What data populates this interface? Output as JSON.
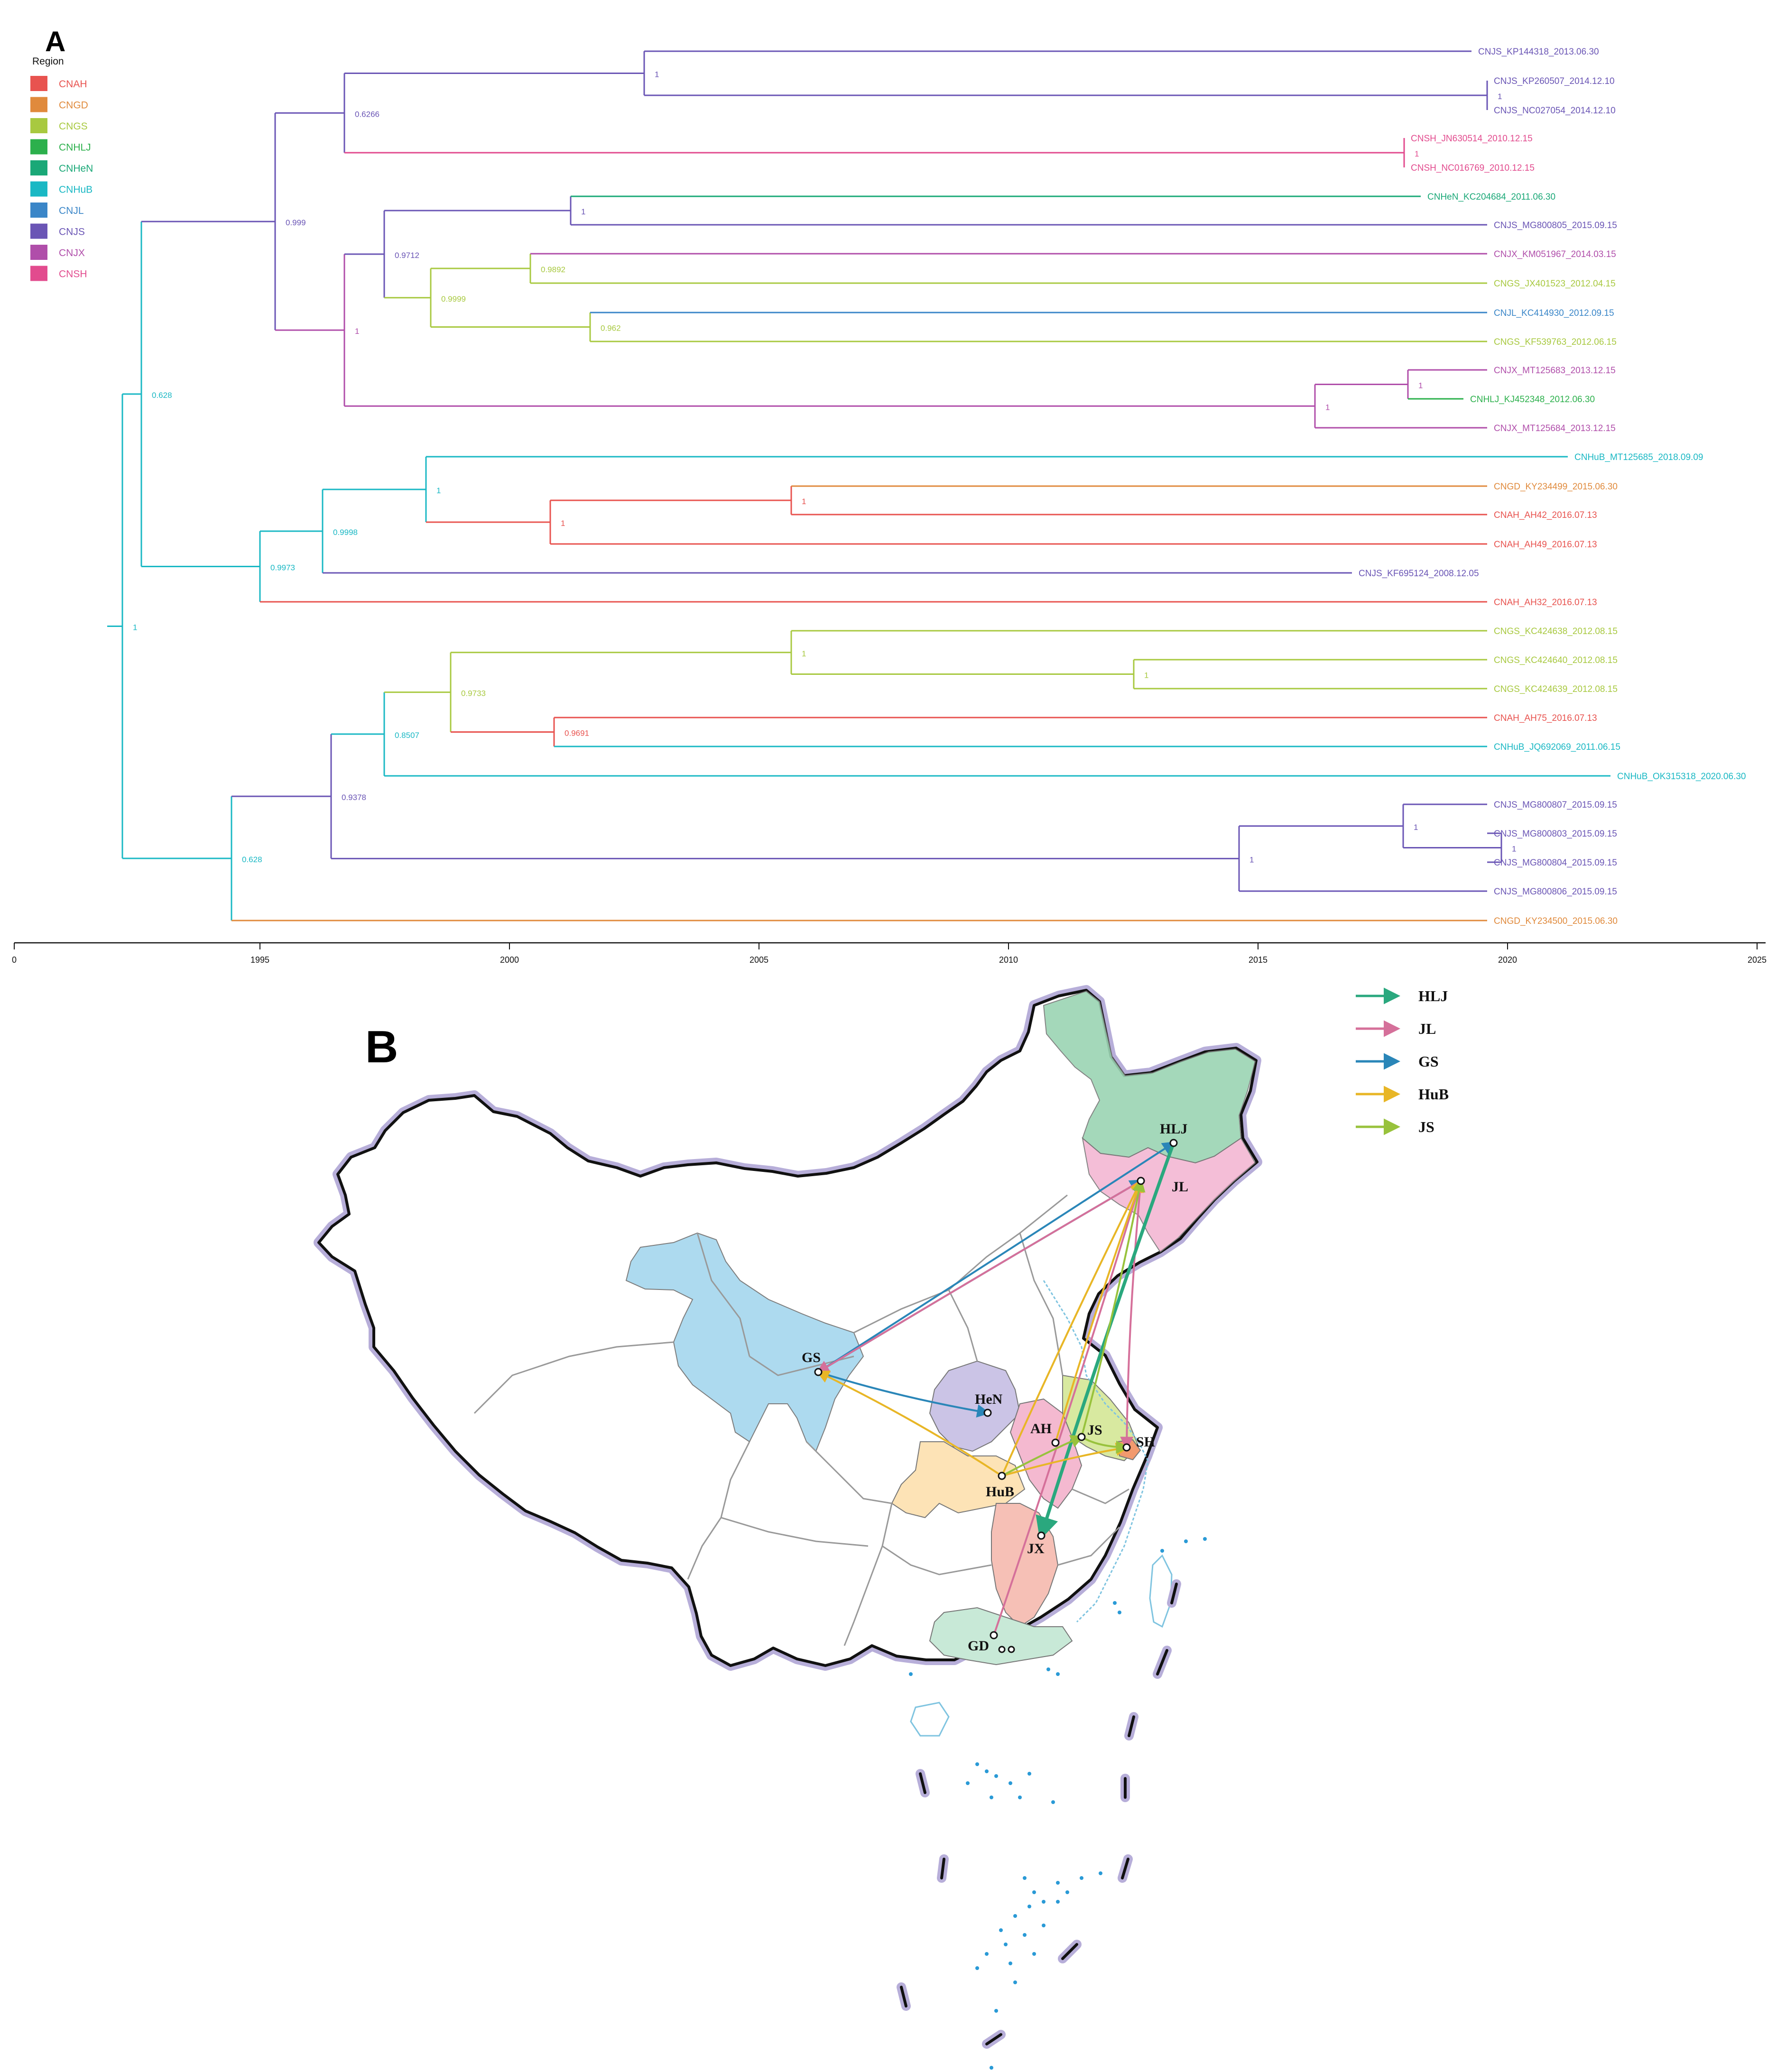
{
  "panel_a_label": "A",
  "panel_b_label": "B",
  "legend_title": "Region",
  "regions": [
    {
      "code": "CNAH",
      "color": "#e8534f"
    },
    {
      "code": "CNGD",
      "color": "#e08a3c"
    },
    {
      "code": "CNGS",
      "color": "#a8c940"
    },
    {
      "code": "CNHLJ",
      "color": "#2cb04c"
    },
    {
      "code": "CNHeN",
      "color": "#1aa877"
    },
    {
      "code": "CNHuB",
      "color": "#1ab8c4"
    },
    {
      "code": "CNJL",
      "color": "#3a86c8"
    },
    {
      "code": "CNJS",
      "color": "#6a55b5"
    },
    {
      "code": "CNJX",
      "color": "#b04eaa"
    },
    {
      "code": "CNSH",
      "color": "#e24b8e"
    }
  ],
  "tips": [
    {
      "label": "CNJS_KP144318_2013.06.30",
      "region": "CNJS"
    },
    {
      "label": "CNJS_KP260507_2014.12.10",
      "region": "CNJS"
    },
    {
      "label": "CNJS_NC027054_2014.12.10",
      "region": "CNJS"
    },
    {
      "label": "CNSH_JN630514_2010.12.15",
      "region": "CNSH"
    },
    {
      "label": "CNSH_NC016769_2010.12.15",
      "region": "CNSH"
    },
    {
      "label": "CNHeN_KC204684_2011.06.30",
      "region": "CNHeN"
    },
    {
      "label": "CNJS_MG800805_2015.09.15",
      "region": "CNJS"
    },
    {
      "label": "CNJX_KM051967_2014.03.15",
      "region": "CNJX"
    },
    {
      "label": "CNGS_JX401523_2012.04.15",
      "region": "CNGS"
    },
    {
      "label": "CNJL_KC414930_2012.09.15",
      "region": "CNJL"
    },
    {
      "label": "CNGS_KF539763_2012.06.15",
      "region": "CNGS"
    },
    {
      "label": "CNJX_MT125683_2013.12.15",
      "region": "CNJX"
    },
    {
      "label": "CNHLJ_KJ452348_2012.06.30",
      "region": "CNHLJ"
    },
    {
      "label": "CNJX_MT125684_2013.12.15",
      "region": "CNJX"
    },
    {
      "label": "CNHuB_MT125685_2018.09.09",
      "region": "CNHuB"
    },
    {
      "label": "CNGD_KY234499_2015.06.30",
      "region": "CNGD"
    },
    {
      "label": "CNAH_AH42_2016.07.13",
      "region": "CNAH"
    },
    {
      "label": "CNAH_AH49_2016.07.13",
      "region": "CNAH"
    },
    {
      "label": "CNJS_KF695124_2008.12.05",
      "region": "CNJS"
    },
    {
      "label": "CNAH_AH32_2016.07.13",
      "region": "CNAH"
    },
    {
      "label": "CNGS_KC424638_2012.08.15",
      "region": "CNGS"
    },
    {
      "label": "CNGS_KC424640_2012.08.15",
      "region": "CNGS"
    },
    {
      "label": "CNGS_KC424639_2012.08.15",
      "region": "CNGS"
    },
    {
      "label": "CNAH_AH75_2016.07.13",
      "region": "CNAH"
    },
    {
      "label": "CNHuB_JQ692069_2011.06.15",
      "region": "CNHuB"
    },
    {
      "label": "CNHuB_OK315318_2020.06.30",
      "region": "CNHuB"
    },
    {
      "label": "CNJS_MG800807_2015.09.15",
      "region": "CNJS"
    },
    {
      "label": "CNJS_MG800803_2015.09.15",
      "region": "CNJS"
    },
    {
      "label": "CNJS_MG800804_2015.09.15",
      "region": "CNJS"
    },
    {
      "label": "CNJS_MG800806_2015.09.15",
      "region": "CNJS"
    },
    {
      "label": "CNGD_KY234500_2015.06.30",
      "region": "CNGD"
    }
  ],
  "node_supports": [
    "1",
    "1",
    "1",
    "0.6266",
    "1",
    "0.9892",
    "0.962",
    "0.9999",
    "0.9712",
    "1",
    "1",
    "1",
    "0.999",
    "1",
    "1",
    "1",
    "0.9998",
    "0.9973",
    "1",
    "1",
    "0.9691",
    "0.9733",
    "0.8507",
    "1",
    "1",
    "1",
    "0.9378",
    "0.628",
    "1"
  ],
  "time_axis": {
    "ticks": [
      "0",
      "1995",
      "2000",
      "2005",
      "2010",
      "2015",
      "2020",
      "2025"
    ]
  },
  "provinces": [
    {
      "code": "HLJ"
    },
    {
      "code": "JL"
    },
    {
      "code": "GS"
    },
    {
      "code": "HeN"
    },
    {
      "code": "AH"
    },
    {
      "code": "JS"
    },
    {
      "code": "SH"
    },
    {
      "code": "HuB"
    },
    {
      "code": "JX"
    },
    {
      "code": "GD"
    }
  ],
  "flow_legend": [
    {
      "label": "HLJ",
      "color": "#2aa87e"
    },
    {
      "label": "JL",
      "color": "#d5709a"
    },
    {
      "label": "GS",
      "color": "#2a86b8"
    },
    {
      "label": "HuB",
      "color": "#e8b626"
    },
    {
      "label": "JS",
      "color": "#98c23c"
    }
  ]
}
